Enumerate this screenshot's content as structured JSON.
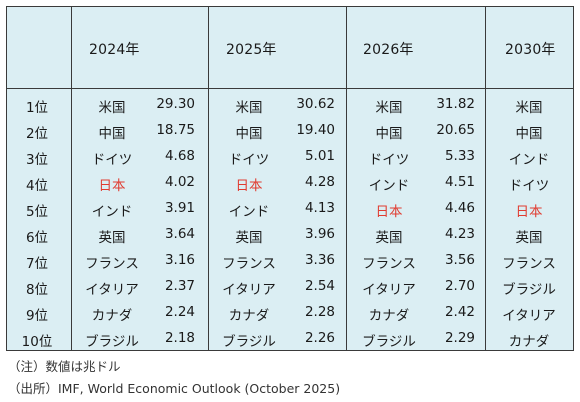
{
  "years": [
    "2024年",
    "2025年",
    "2026年",
    "2030年"
  ],
  "rows": [
    {
      "rank": "1位",
      "y2024": {
        "c": "米国",
        "v": "29.30"
      },
      "y2025": {
        "c": "米国",
        "v": "30.62"
      },
      "y2026": {
        "c": "米国",
        "v": "31.82"
      },
      "y2030": "米国"
    },
    {
      "rank": "2位",
      "y2024": {
        "c": "中国",
        "v": "18.75"
      },
      "y2025": {
        "c": "中国",
        "v": "19.40"
      },
      "y2026": {
        "c": "中国",
        "v": "20.65"
      },
      "y2030": "中国"
    },
    {
      "rank": "3位",
      "y2024": {
        "c": "ドイツ",
        "v": "4.68"
      },
      "y2025": {
        "c": "ドイツ",
        "v": "5.01"
      },
      "y2026": {
        "c": "ドイツ",
        "v": "5.33"
      },
      "y2030": "インド"
    },
    {
      "rank": "4位",
      "y2024": {
        "c": "日本",
        "v": "4.02"
      },
      "y2025": {
        "c": "日本",
        "v": "4.28"
      },
      "y2026": {
        "c": "インド",
        "v": "4.51"
      },
      "y2030": "ドイツ"
    },
    {
      "rank": "5位",
      "y2024": {
        "c": "インド",
        "v": "3.91"
      },
      "y2025": {
        "c": "インド",
        "v": "4.13"
      },
      "y2026": {
        "c": "日本",
        "v": "4.46"
      },
      "y2030": "日本"
    },
    {
      "rank": "6位",
      "y2024": {
        "c": "英国",
        "v": "3.64"
      },
      "y2025": {
        "c": "英国",
        "v": "3.96"
      },
      "y2026": {
        "c": "英国",
        "v": "4.23"
      },
      "y2030": "英国"
    },
    {
      "rank": "7位",
      "y2024": {
        "c": "フランス",
        "v": "3.16"
      },
      "y2025": {
        "c": "フランス",
        "v": "3.36"
      },
      "y2026": {
        "c": "フランス",
        "v": "3.56"
      },
      "y2030": "フランス"
    },
    {
      "rank": "8位",
      "y2024": {
        "c": "イタリア",
        "v": "2.37"
      },
      "y2025": {
        "c": "イタリア",
        "v": "2.54"
      },
      "y2026": {
        "c": "イタリア",
        "v": "2.70"
      },
      "y2030": "ブラジル"
    },
    {
      "rank": "9位",
      "y2024": {
        "c": "カナダ",
        "v": "2.24"
      },
      "y2025": {
        "c": "カナダ",
        "v": "2.28"
      },
      "y2026": {
        "c": "カナダ",
        "v": "2.42"
      },
      "y2030": "イタリア"
    },
    {
      "rank": "10位",
      "y2024": {
        "c": "ブラジル",
        "v": "2.18"
      },
      "y2025": {
        "c": "ブラジル",
        "v": "2.26"
      },
      "y2026": {
        "c": "ブラジル",
        "v": "2.29"
      },
      "y2030": "カナダ"
    }
  ],
  "highlight_country": "日本",
  "highlight_color": "#e03c31",
  "table_bg": "#dbeef3",
  "notes": {
    "unit": "（注）数値は兆ドル",
    "source": "（出所）IMF, World Economic Outlook (October 2025)"
  }
}
